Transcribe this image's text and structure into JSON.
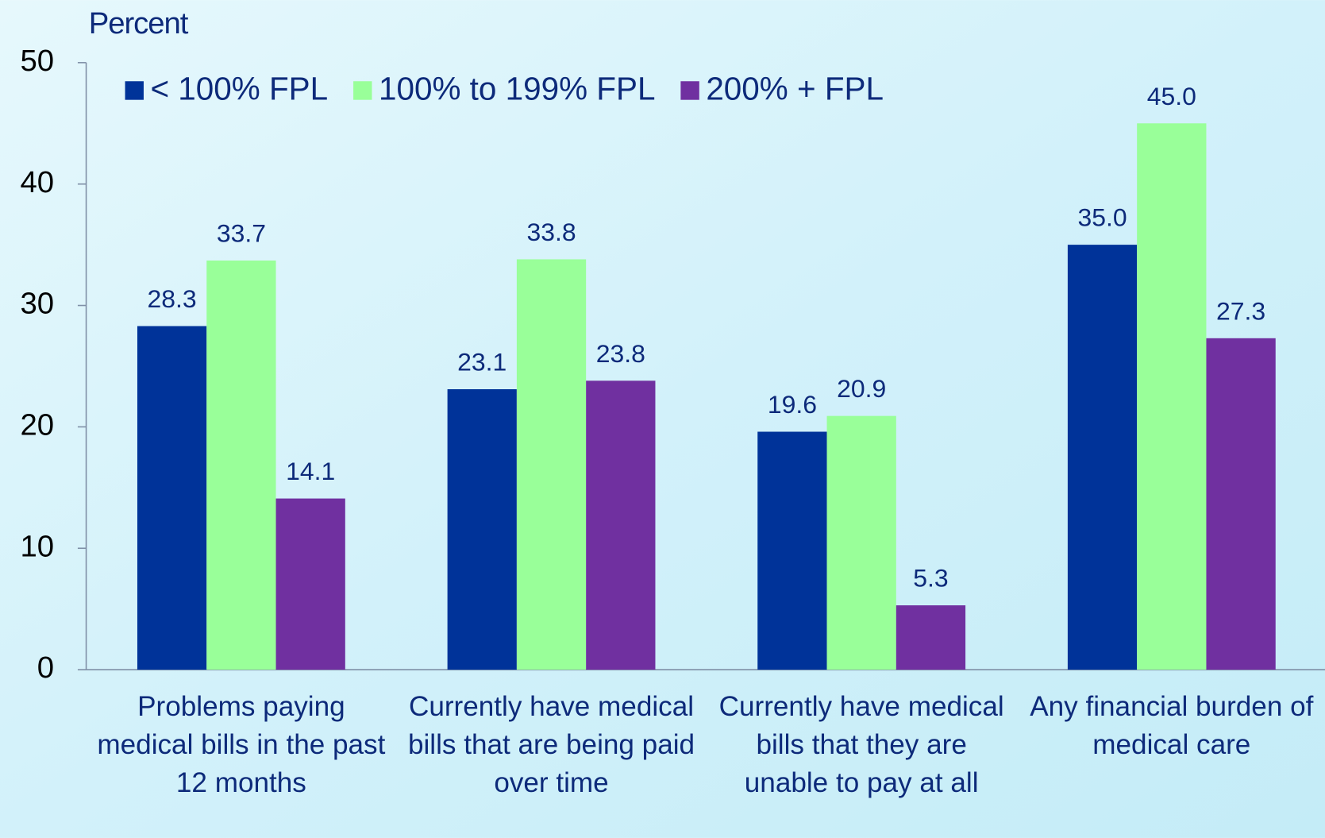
{
  "chart_data": {
    "type": "bar",
    "y_label": "Percent",
    "categories": [
      "Problems paying medical bills in the past 12 months",
      "Currently have medical bills that are being paid over time",
      "Currently have medical bills that they are unable to pay at all",
      "Any financial burden of medical care"
    ],
    "series": [
      {
        "name": "< 100% FPL",
        "color": "#003399",
        "values": [
          28.3,
          23.1,
          19.6,
          35.0
        ],
        "value_labels": [
          "28.3",
          "23.1",
          "19.6",
          "35.0"
        ]
      },
      {
        "name": "100% to 199% FPL",
        "color": "#99ff99",
        "values": [
          33.7,
          33.8,
          20.9,
          45.0
        ],
        "value_labels": [
          "33.7",
          "33.8",
          "20.9",
          "45.0"
        ]
      },
      {
        "name": "200% + FPL",
        "color": "#7030a0",
        "values": [
          14.1,
          23.8,
          5.3,
          27.3
        ],
        "value_labels": [
          "14.1",
          "23.8",
          "5.3",
          "27.3"
        ]
      }
    ],
    "ylim": [
      0,
      50
    ],
    "yticks": [
      0,
      10,
      20,
      30,
      40,
      50
    ],
    "legend": "top"
  }
}
